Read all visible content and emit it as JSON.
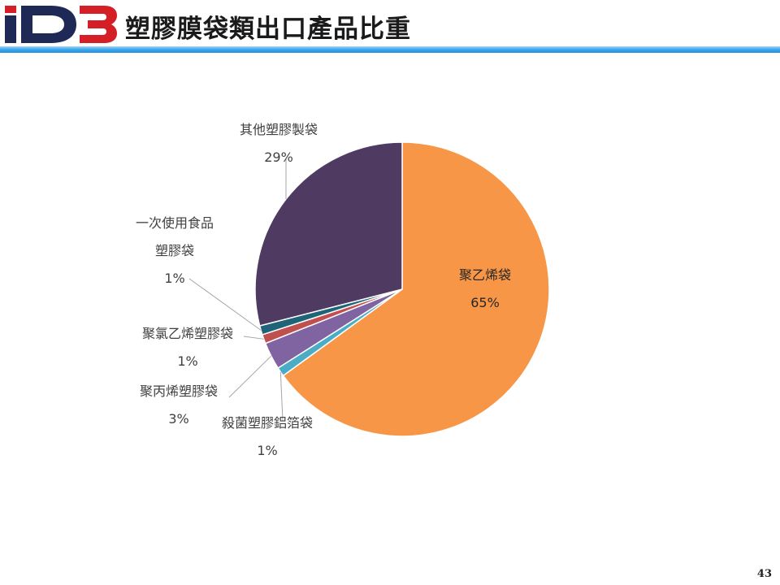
{
  "header": {
    "logo_text": "iDB",
    "title": "塑膠膜袋類出口產品比重"
  },
  "chart_data": {
    "type": "pie",
    "title": "",
    "slices": [
      {
        "name": "聚乙烯袋",
        "value": 65,
        "label": "65%",
        "color": "#F79646"
      },
      {
        "name": "殺菌塑膠鋁箔袋",
        "value": 1,
        "label": "1%",
        "color": "#4BACC6"
      },
      {
        "name": "聚丙烯塑膠袋",
        "value": 3,
        "label": "3%",
        "color": "#8064A2"
      },
      {
        "name": "聚氯乙烯塑膠袋",
        "value": 1,
        "label": "1%",
        "color": "#C0504D"
      },
      {
        "name": "一次使用食品塑膠袋",
        "value": 1,
        "label": "1%",
        "color": "#1F6478"
      },
      {
        "name": "其他塑膠製袋",
        "value": 29,
        "label": "29%",
        "color": "#4F3B62"
      }
    ],
    "label_lines": {
      "聚乙烯袋": [
        "聚乙烯袋"
      ],
      "殺菌塑膠鋁箔袋": [
        "殺菌塑膠鋁箔袋"
      ],
      "聚丙烯塑膠袋": [
        "聚丙烯塑膠袋"
      ],
      "聚氯乙烯塑膠袋": [
        "聚氯乙烯塑膠袋"
      ],
      "一次使用食品塑膠袋": [
        "一次使用食品",
        "塑膠袋"
      ],
      "其他塑膠製袋": [
        "其他塑膠製袋"
      ]
    }
  },
  "footer": {
    "page_number": "43"
  }
}
